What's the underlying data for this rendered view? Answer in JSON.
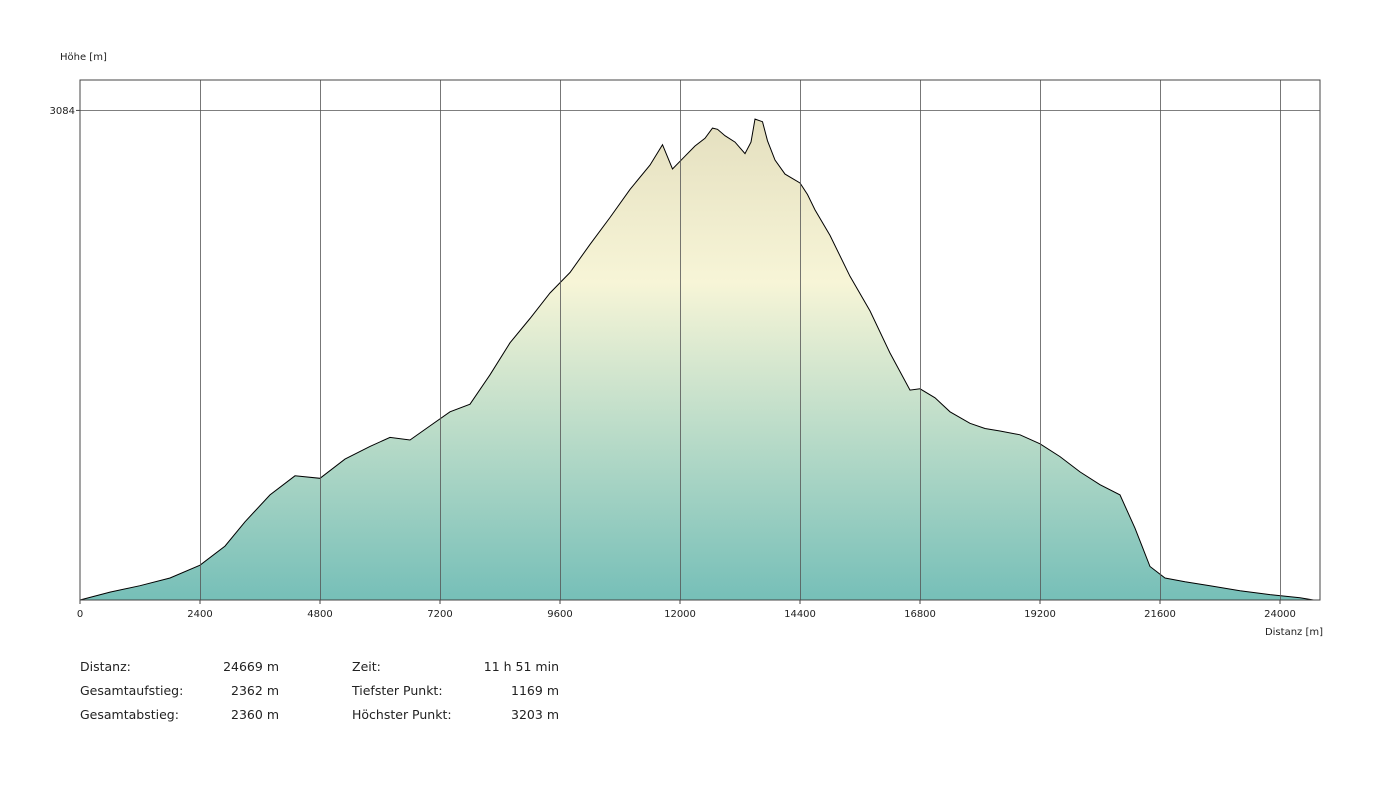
{
  "chart_data": {
    "type": "area",
    "ylabel": "Höhe [m]",
    "xlabel": "Distanz [m]",
    "xlim": [
      0,
      24800
    ],
    "ylim": [
      1169,
      3203
    ],
    "x_ticks": [
      0,
      2400,
      4800,
      7200,
      9600,
      12000,
      14400,
      16800,
      19200,
      21600,
      24000
    ],
    "y_ticks": [
      3084
    ],
    "grid": true,
    "x": [
      0,
      600,
      1200,
      1800,
      2400,
      2900,
      3300,
      3800,
      4300,
      4800,
      5300,
      5800,
      6200,
      6600,
      7000,
      7400,
      7800,
      8200,
      8600,
      9000,
      9400,
      9800,
      10200,
      10600,
      11000,
      11400,
      11650,
      11850,
      12100,
      12300,
      12500,
      12650,
      12750,
      12900,
      13100,
      13300,
      13420,
      13500,
      13650,
      13750,
      13900,
      14100,
      14400,
      14550,
      14700,
      15000,
      15400,
      15800,
      16200,
      16600,
      16800,
      17100,
      17400,
      17800,
      18100,
      18400,
      18800,
      19200,
      19600,
      20000,
      20400,
      20800,
      21100,
      21400,
      21700,
      22100,
      22600,
      23200,
      23800,
      24400,
      24669
    ],
    "y": [
      1169,
      1200,
      1225,
      1255,
      1305,
      1380,
      1475,
      1580,
      1655,
      1645,
      1720,
      1770,
      1805,
      1795,
      1850,
      1905,
      1935,
      2050,
      2175,
      2270,
      2370,
      2450,
      2560,
      2665,
      2775,
      2870,
      2950,
      2855,
      2905,
      2945,
      2975,
      3015,
      3010,
      2985,
      2960,
      2915,
      2960,
      3050,
      3040,
      2965,
      2890,
      2835,
      2800,
      2755,
      2695,
      2595,
      2435,
      2300,
      2135,
      1990,
      1995,
      1960,
      1905,
      1860,
      1840,
      1830,
      1815,
      1780,
      1730,
      1670,
      1620,
      1580,
      1450,
      1300,
      1255,
      1240,
      1225,
      1205,
      1190,
      1178,
      1169
    ]
  },
  "stats": [
    {
      "label": "Distanz:",
      "value": "24669 m"
    },
    {
      "label": "Gesamtaufstieg:",
      "value": "2362 m"
    },
    {
      "label": "Gesamtabstieg:",
      "value": "2360 m"
    },
    {
      "label": "Zeit:",
      "value": "11 h 51 min"
    },
    {
      "label": "Tiefster Punkt:",
      "value": "1169 m"
    },
    {
      "label": "Höchster Punkt:",
      "value": "3203 m"
    }
  ],
  "colors": {
    "fill_top": "#e4dfbf",
    "fill_mid": "#f7f5d7",
    "fill_bottom": "#76bfb8",
    "line": "#000000",
    "grid": "#555555"
  }
}
